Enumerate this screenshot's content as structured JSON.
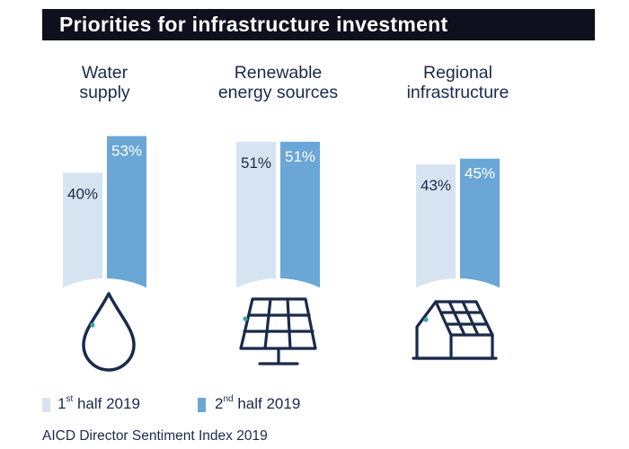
{
  "header": {
    "title": "Priorities for infrastructure investment"
  },
  "chart_data": {
    "type": "bar",
    "title": "Priorities for infrastructure investment",
    "unit": "%",
    "ylim": [
      0,
      60
    ],
    "categories": [
      {
        "name": "Water supply",
        "label_lines": [
          "Water",
          "supply"
        ],
        "icon": "water-drop-icon"
      },
      {
        "name": "Renewable energy sources",
        "label_lines": [
          "Renewable",
          "energy sources"
        ],
        "icon": "solar-panel-icon"
      },
      {
        "name": "Regional infrastructure",
        "label_lines": [
          "Regional",
          "infrastructure"
        ],
        "icon": "solar-roof-house-icon"
      }
    ],
    "series": [
      {
        "name": "1st half 2019",
        "values": [
          40,
          51,
          43
        ],
        "color": "#d6e4f2"
      },
      {
        "name": "2nd half 2019",
        "values": [
          53,
          51,
          45
        ],
        "color": "#6aa6d6"
      }
    ],
    "data_labels": [
      [
        "40%",
        "51%",
        "43%"
      ],
      [
        "53%",
        "51%",
        "45%"
      ]
    ]
  },
  "legend": {
    "items": [
      {
        "base": "1",
        "sup": "st",
        "rest": " half 2019"
      },
      {
        "base": "2",
        "sup": "nd",
        "rest": " half 2019"
      }
    ]
  },
  "footer": {
    "source": "AICD Director Sentiment Index 2019"
  },
  "colors": {
    "ink": "#1b2a4a",
    "accent_dot": "#3aa6b0",
    "title_bg": "#0f0f1e"
  }
}
